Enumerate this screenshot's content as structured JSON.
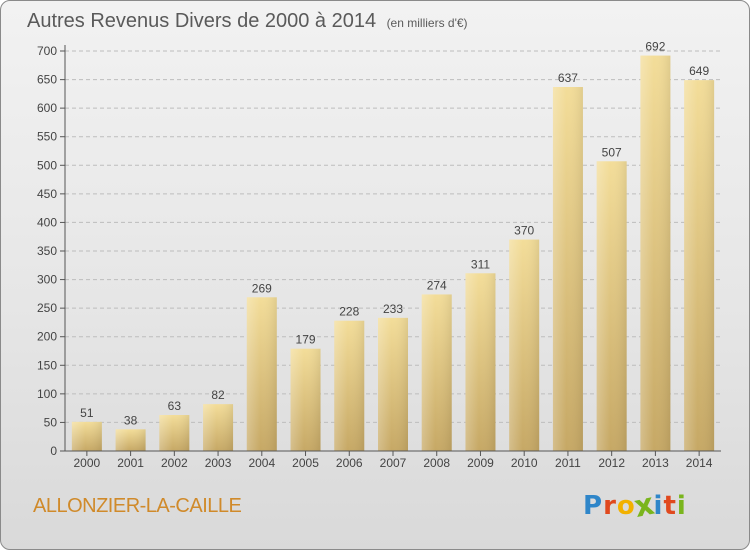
{
  "header": {
    "title": "Autres Revenus Divers de 2000 à 2014",
    "unit": "(en milliers d'€)"
  },
  "footer": {
    "commune": "ALLONZIER-LA-CAILLE",
    "brand": "Proxiti",
    "brand_letters": [
      {
        "ch": "P",
        "color": "#2f86c9"
      },
      {
        "ch": "r",
        "color": "#e0491e"
      },
      {
        "ch": "o",
        "color": "#f2b100"
      },
      {
        "ch": "x",
        "color": "#7ab51d"
      },
      {
        "ch": "i",
        "color": "#2f86c9"
      },
      {
        "ch": "t",
        "color": "#e0491e"
      },
      {
        "ch": "i",
        "color": "#7ab51d"
      }
    ]
  },
  "colors": {
    "bar_light": "#f3dd99",
    "bar_dark": "#c6a865",
    "axis": "#555555",
    "text": "#444444"
  },
  "chart_data": {
    "type": "bar",
    "title": "Autres Revenus Divers de 2000 à 2014",
    "categories": [
      "2000",
      "2001",
      "2002",
      "2003",
      "2004",
      "2005",
      "2006",
      "2007",
      "2008",
      "2009",
      "2010",
      "2011",
      "2012",
      "2013",
      "2014"
    ],
    "values": [
      51,
      38,
      63,
      82,
      269,
      179,
      228,
      233,
      274,
      311,
      370,
      637,
      507,
      692,
      649
    ],
    "ylim": [
      0,
      700
    ],
    "yticks": [
      0,
      50,
      100,
      150,
      200,
      250,
      300,
      350,
      400,
      450,
      500,
      550,
      600,
      650,
      700
    ],
    "grid": true
  }
}
